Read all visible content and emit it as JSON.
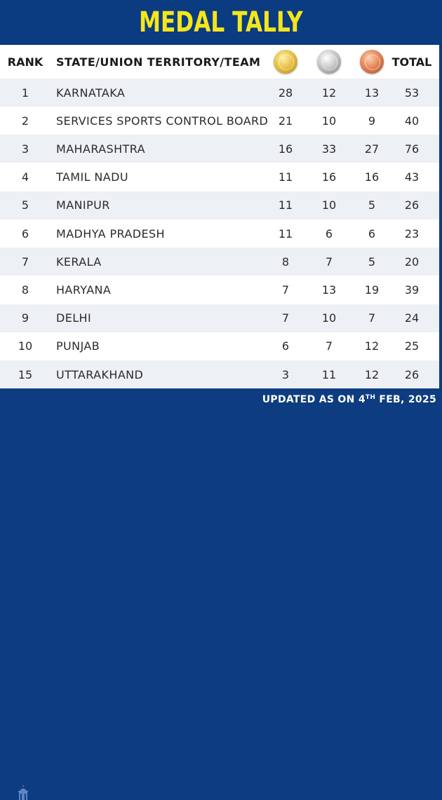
{
  "title": "MEDAL TALLY",
  "header": {
    "rank": "RANK",
    "team": "STATE/UNION TERRITORY/TEAM",
    "gold_icon": "gold-medal-icon",
    "silver_icon": "silver-medal-icon",
    "bronze_icon": "bronze-medal-icon",
    "total": "TOTAL"
  },
  "rows": [
    {
      "rank": "1",
      "team": "KARNATAKA",
      "gold": "28",
      "silver": "12",
      "bronze": "13",
      "total": "53"
    },
    {
      "rank": "2",
      "team": "SERVICES SPORTS CONTROL BOARD",
      "gold": "21",
      "silver": "10",
      "bronze": "9",
      "total": "40"
    },
    {
      "rank": "3",
      "team": "MAHARASHTRA",
      "gold": "16",
      "silver": "33",
      "bronze": "27",
      "total": "76"
    },
    {
      "rank": "4",
      "team": "TAMIL NADU",
      "gold": "11",
      "silver": "16",
      "bronze": "16",
      "total": "43"
    },
    {
      "rank": "5",
      "team": "MANIPUR",
      "gold": "11",
      "silver": "10",
      "bronze": "5",
      "total": "26"
    },
    {
      "rank": "6",
      "team": "MADHYA PRADESH",
      "gold": "11",
      "silver": "6",
      "bronze": "6",
      "total": "23"
    },
    {
      "rank": "7",
      "team": "KERALA",
      "gold": "8",
      "silver": "7",
      "bronze": "5",
      "total": "20"
    },
    {
      "rank": "8",
      "team": "HARYANA",
      "gold": "7",
      "silver": "13",
      "bronze": "19",
      "total": "39"
    },
    {
      "rank": "9",
      "team": "DELHI",
      "gold": "7",
      "silver": "10",
      "bronze": "7",
      "total": "24"
    },
    {
      "rank": "10",
      "team": "PUNJAB",
      "gold": "6",
      "silver": "7",
      "bronze": "12",
      "total": "25"
    },
    {
      "rank": "15",
      "team": "UTTARAKHAND",
      "gold": "3",
      "silver": "11",
      "bronze": "12",
      "total": "26"
    }
  ],
  "footer": {
    "prefix": "UPDATED AS ON 4",
    "superscript": "TH",
    "suffix": " FEB, 2025"
  },
  "colors": {
    "brand_blue": "#0d3c80",
    "title_yellow": "#f4e61c",
    "row_alt": "#edf0f4"
  }
}
